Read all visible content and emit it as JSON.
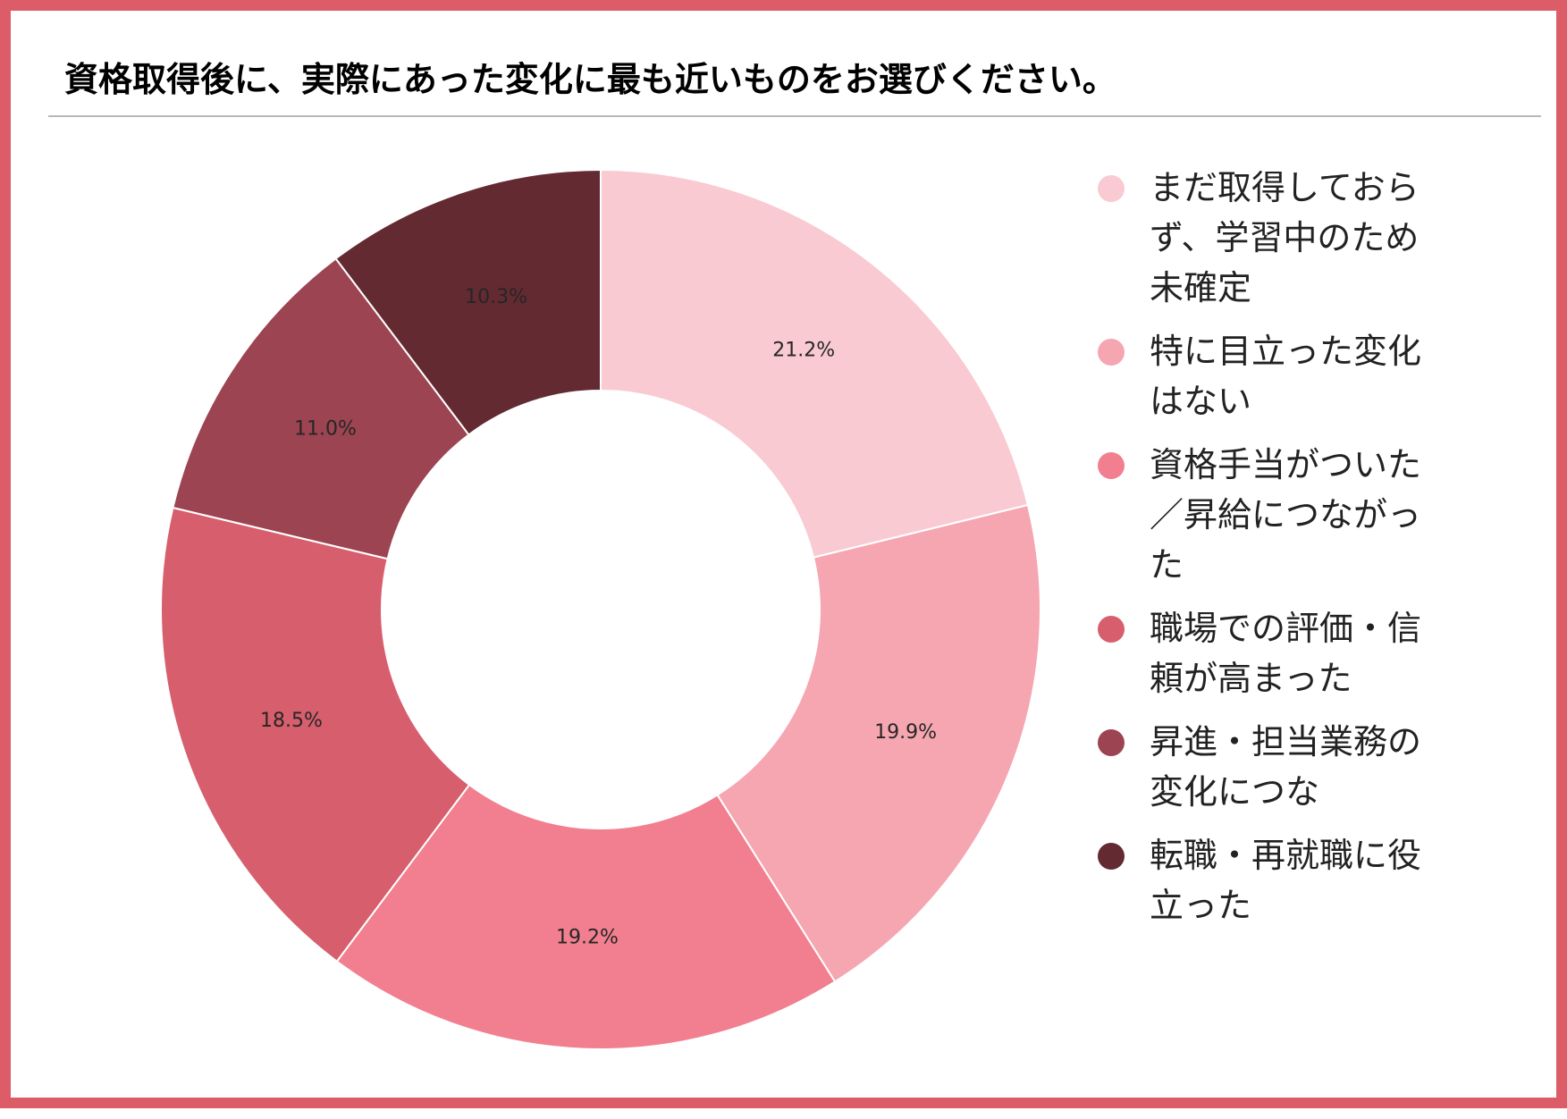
{
  "chart_data": {
    "type": "pie",
    "donut": true,
    "title": "資格取得後に、実際にあった変化に最も近いものをお選びください。",
    "legend_position": "right",
    "categories": [
      "まだ取得しておらず、学習中のため未確定",
      "特に目立った変化はない",
      "資格手当がついた／昇給につながった",
      "職場での評価・信頼が高まった",
      "昇進・担当業務の変化につな",
      "転職・再就職に役立った"
    ],
    "values": [
      21.2,
      19.9,
      19.2,
      18.5,
      11.0,
      10.3
    ],
    "value_labels": [
      "21.2%",
      "19.9%",
      "19.2%",
      "18.5%",
      "11.0%",
      "10.3%"
    ],
    "colors": [
      "#f9cad2",
      "#f5a6b1",
      "#f27f8f",
      "#d75e6d",
      "#9c4451",
      "#632a32"
    ]
  }
}
